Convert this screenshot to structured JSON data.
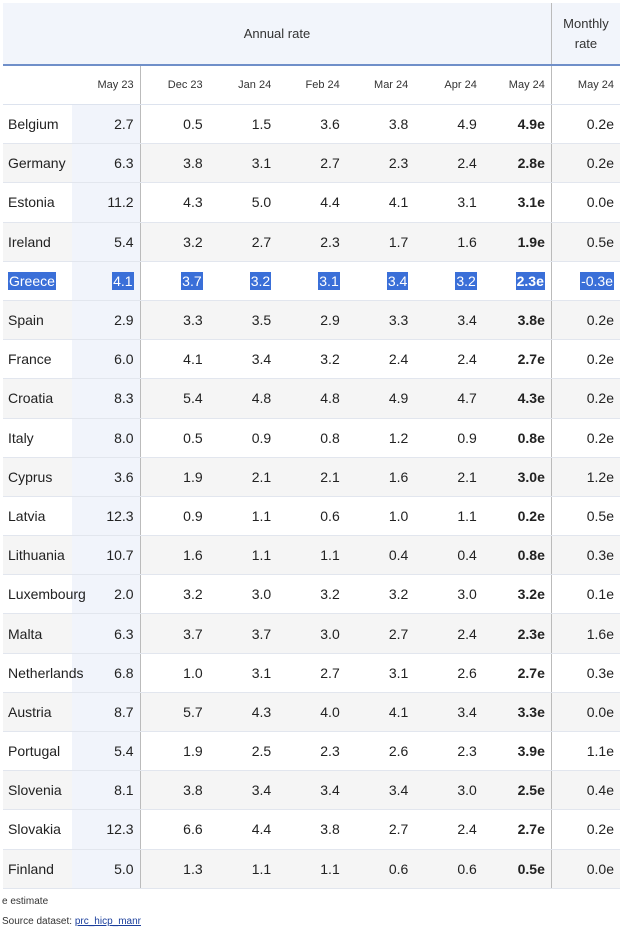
{
  "table": {
    "group_headers": [
      "Annual rate",
      "Monthly rate"
    ],
    "columns": [
      "May 23",
      "Dec 23",
      "Jan 24",
      "Feb 24",
      "Mar 24",
      "Apr 24",
      "May 24",
      "May 24"
    ],
    "rows": [
      [
        "Belgium",
        "2.7",
        "0.5",
        "1.5",
        "3.6",
        "3.8",
        "4.9",
        "4.9e",
        "0.2e"
      ],
      [
        "Germany",
        "6.3",
        "3.8",
        "3.1",
        "2.7",
        "2.3",
        "2.4",
        "2.8e",
        "0.2e"
      ],
      [
        "Estonia",
        "11.2",
        "4.3",
        "5.0",
        "4.4",
        "4.1",
        "3.1",
        "3.1e",
        "0.0e"
      ],
      [
        "Ireland",
        "5.4",
        "3.2",
        "2.7",
        "2.3",
        "1.7",
        "1.6",
        "1.9e",
        "0.5e"
      ],
      [
        "Greece",
        "4.1",
        "3.7",
        "3.2",
        "3.1",
        "3.4",
        "3.2",
        "2.3e",
        "-0.3e"
      ],
      [
        "Spain",
        "2.9",
        "3.3",
        "3.5",
        "2.9",
        "3.3",
        "3.4",
        "3.8e",
        "0.2e"
      ],
      [
        "France",
        "6.0",
        "4.1",
        "3.4",
        "3.2",
        "2.4",
        "2.4",
        "2.7e",
        "0.2e"
      ],
      [
        "Croatia",
        "8.3",
        "5.4",
        "4.8",
        "4.8",
        "4.9",
        "4.7",
        "4.3e",
        "0.2e"
      ],
      [
        "Italy",
        "8.0",
        "0.5",
        "0.9",
        "0.8",
        "1.2",
        "0.9",
        "0.8e",
        "0.2e"
      ],
      [
        "Cyprus",
        "3.6",
        "1.9",
        "2.1",
        "2.1",
        "1.6",
        "2.1",
        "3.0e",
        "1.2e"
      ],
      [
        "Latvia",
        "12.3",
        "0.9",
        "1.1",
        "0.6",
        "1.0",
        "1.1",
        "0.2e",
        "0.5e"
      ],
      [
        "Lithuania",
        "10.7",
        "1.6",
        "1.1",
        "1.1",
        "0.4",
        "0.4",
        "0.8e",
        "0.3e"
      ],
      [
        "Luxembourg",
        "2.0",
        "3.2",
        "3.0",
        "3.2",
        "3.2",
        "3.0",
        "3.2e",
        "0.1e"
      ],
      [
        "Malta",
        "6.3",
        "3.7",
        "3.7",
        "3.0",
        "2.7",
        "2.4",
        "2.3e",
        "1.6e"
      ],
      [
        "Netherlands",
        "6.8",
        "1.0",
        "3.1",
        "2.7",
        "3.1",
        "2.6",
        "2.7e",
        "0.3e"
      ],
      [
        "Austria",
        "8.7",
        "5.7",
        "4.3",
        "4.0",
        "4.1",
        "3.4",
        "3.3e",
        "0.0e"
      ],
      [
        "Portugal",
        "5.4",
        "1.9",
        "2.5",
        "2.3",
        "2.6",
        "2.3",
        "3.9e",
        "1.1e"
      ],
      [
        "Slovenia",
        "8.1",
        "3.8",
        "3.4",
        "3.4",
        "3.4",
        "3.0",
        "2.5e",
        "0.4e"
      ],
      [
        "Slovakia",
        "12.3",
        "6.6",
        "4.4",
        "3.8",
        "2.7",
        "2.4",
        "2.7e",
        "0.2e"
      ],
      [
        "Finland",
        "5.0",
        "1.3",
        "1.1",
        "1.1",
        "0.6",
        "0.6",
        "0.5e",
        "0.0e"
      ]
    ]
  },
  "footer": {
    "note": "e estimate",
    "source_label": "Source dataset:",
    "source_link": "prc_hicp_manr"
  }
}
